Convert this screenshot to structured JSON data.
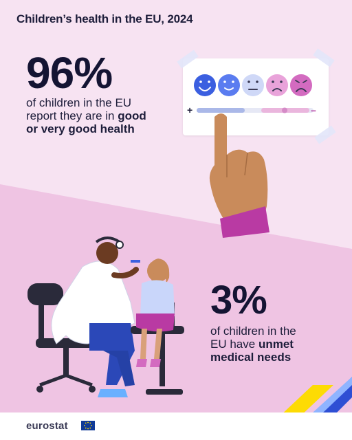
{
  "title": "Children’s health in the EU, 2024",
  "stat1": {
    "value": "96%",
    "line1": "of children in the EU",
    "line2_pre": "report they are in ",
    "line2_bold": "good",
    "line3_bold": "or very good health"
  },
  "stat2": {
    "value": "3%",
    "line1": "of children in the",
    "line2_pre": "EU have ",
    "line2_bold": "unmet",
    "line3_bold": "medical needs"
  },
  "scale": {
    "plus": "+",
    "minus": "–"
  },
  "footer": {
    "logo_text": "eurostat"
  },
  "colors": {
    "background": "#f7e3f2",
    "lower_band": "#eebfe0",
    "text": "#1d1d3a",
    "face_blue_dark": "#3b5fe0",
    "face_blue_mid": "#5a7cf0",
    "face_light": "#cfd8f7",
    "face_pink": "#e9a3da",
    "face_magenta": "#d36bc0",
    "eu_blue": "#103a97",
    "eu_yellow": "#fddb04"
  }
}
